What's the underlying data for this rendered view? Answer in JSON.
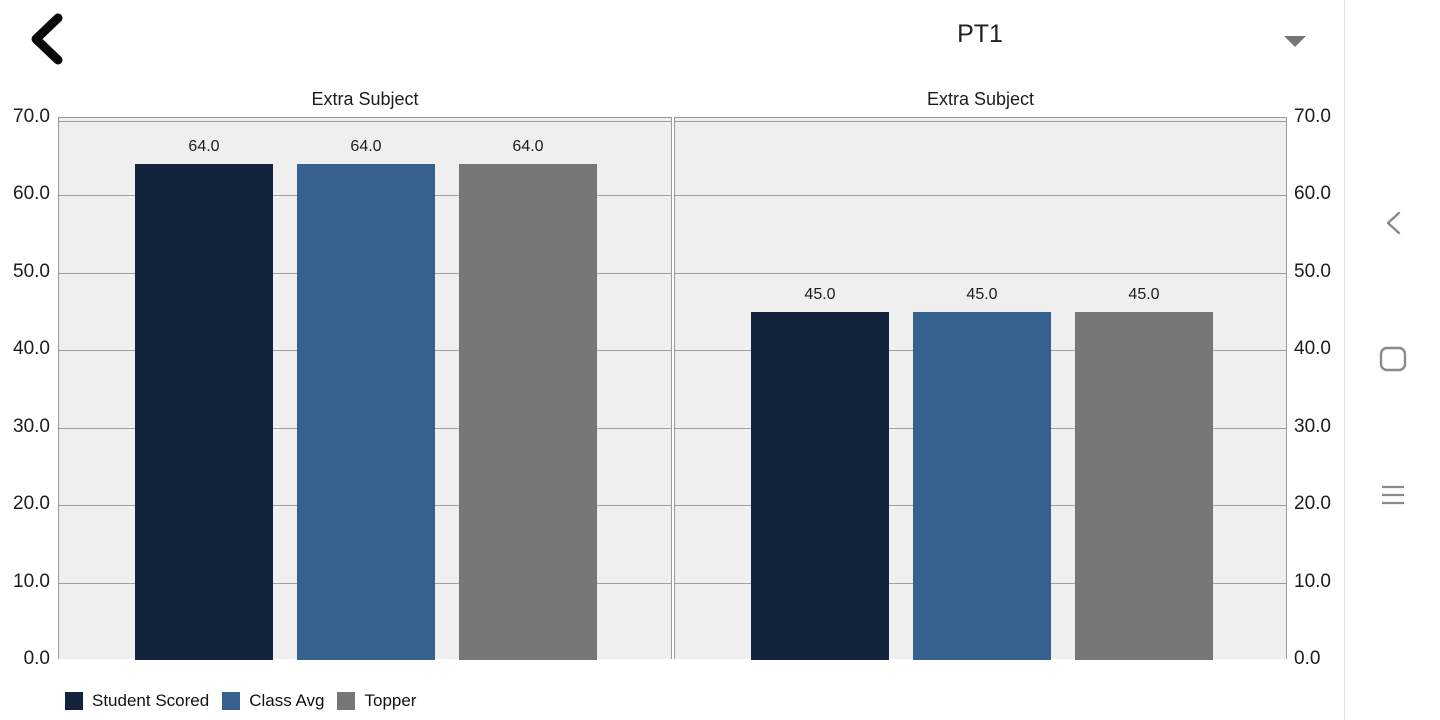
{
  "header": {
    "back_icon": "back-chevron-icon",
    "exam_selector": {
      "value": "PT1",
      "caret_icon": "dropdown-caret-icon"
    }
  },
  "chart_data": [
    {
      "type": "bar",
      "title": "Extra Subject",
      "categories": [
        "Extra Subject"
      ],
      "series": [
        {
          "name": "Student Scored",
          "color": "#13233c",
          "values": [
            64.0
          ]
        },
        {
          "name": "Class Avg",
          "color": "#36618f",
          "values": [
            64.0
          ]
        },
        {
          "name": "Topper",
          "color": "#767676",
          "values": [
            64.0
          ]
        }
      ],
      "value_labels": [
        "64.0",
        "64.0",
        "64.0"
      ],
      "ylim": [
        0,
        70
      ],
      "yticks": [
        0,
        10,
        20,
        30,
        40,
        50,
        60,
        70
      ],
      "ytick_labels": [
        "0.0",
        "10.0",
        "20.0",
        "30.0",
        "40.0",
        "50.0",
        "60.0",
        "70.0"
      ],
      "grid": true,
      "legend_position": "bottom-left"
    },
    {
      "type": "bar",
      "title": "Extra Subject",
      "categories": [
        "Extra Subject"
      ],
      "series": [
        {
          "name": "Student Scored",
          "color": "#13233c",
          "values": [
            45.0
          ]
        },
        {
          "name": "Class Avg",
          "color": "#36618f",
          "values": [
            45.0
          ]
        },
        {
          "name": "Topper",
          "color": "#767676",
          "values": [
            45.0
          ]
        }
      ],
      "value_labels": [
        "45.0",
        "45.0",
        "45.0"
      ],
      "ylim": [
        0,
        70
      ],
      "yticks": [
        0,
        10,
        20,
        30,
        40,
        50,
        60,
        70
      ],
      "ytick_labels": [
        "0.0",
        "10.0",
        "20.0",
        "30.0",
        "40.0",
        "50.0",
        "60.0",
        "70.0"
      ],
      "grid": true,
      "legend_position": "bottom-left"
    }
  ],
  "legend": {
    "items": [
      {
        "label": "Student Scored",
        "color": "#13233c"
      },
      {
        "label": "Class Avg",
        "color": "#36618f"
      },
      {
        "label": "Topper",
        "color": "#767676"
      }
    ]
  },
  "navbar": {
    "icons": [
      {
        "name": "nav-back-icon"
      },
      {
        "name": "nav-home-icon"
      },
      {
        "name": "nav-recents-icon"
      }
    ]
  },
  "colors": {
    "series_navy": "#13233c",
    "series_blue": "#36618f",
    "series_gray": "#767676",
    "plot_background": "#efefef",
    "gridline": "#9e9e9e",
    "nav_icon": "#8a8a8a"
  }
}
